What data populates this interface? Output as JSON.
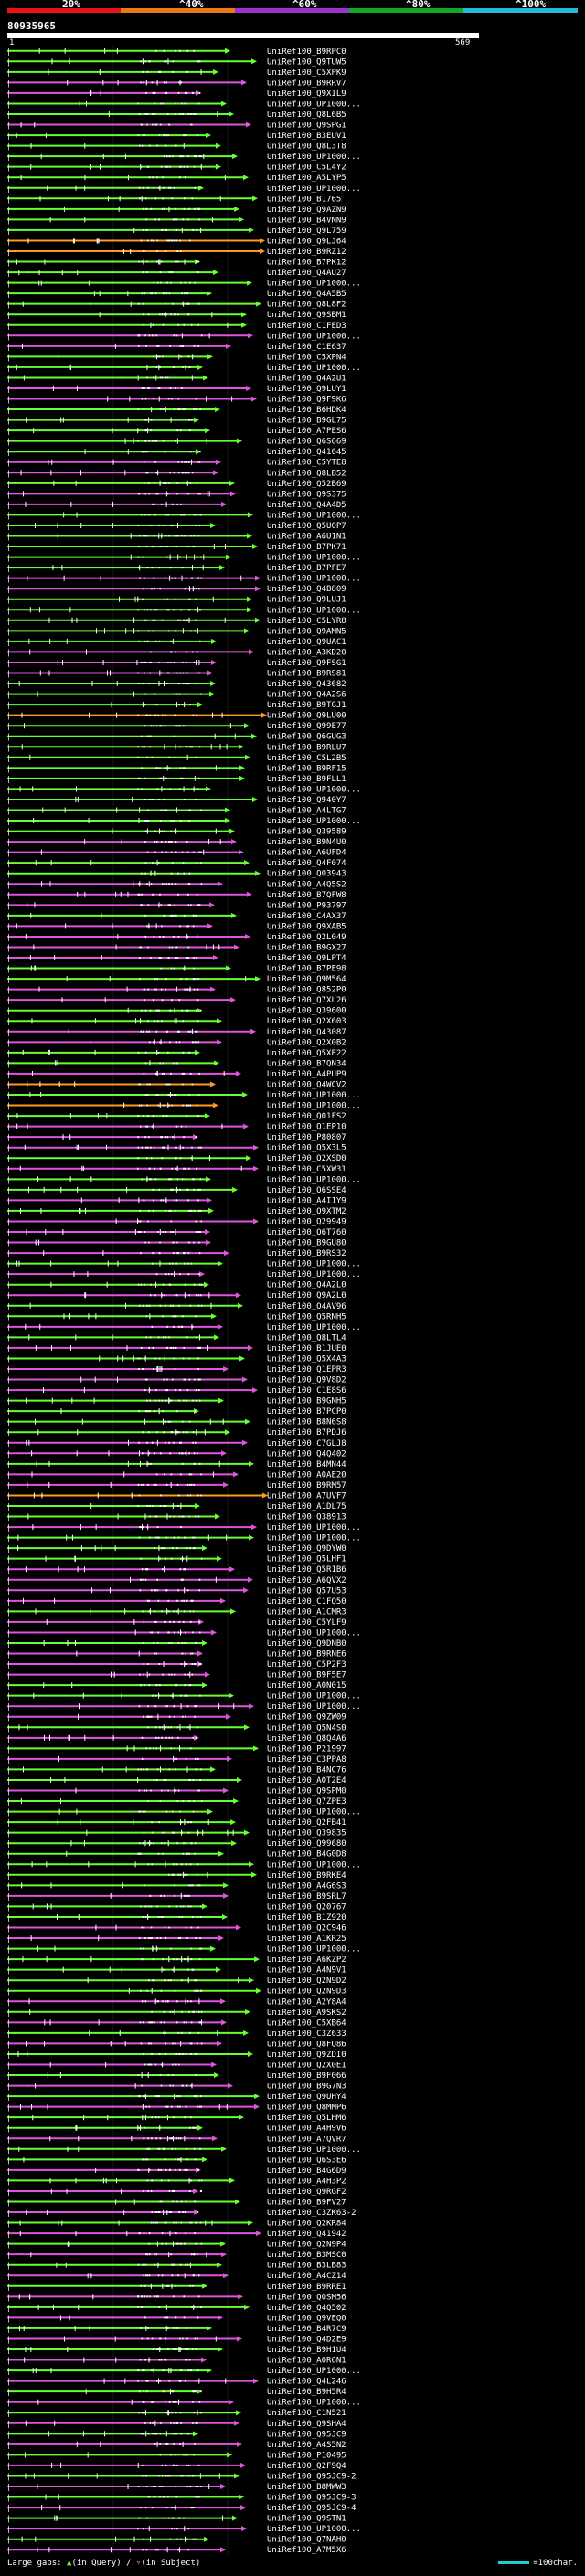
{
  "scale": {
    "ticks": [
      "20%",
      "^40%",
      "^60%",
      "^80%",
      "^100%"
    ],
    "segment_colors": [
      "#ee1111",
      "#ee7711",
      "#9933cc",
      "#11aa22",
      "#22bbdd"
    ]
  },
  "query": {
    "id": "80935965",
    "start": "1",
    "end": "569"
  },
  "footer": {
    "gaps_label": "Large gaps:",
    "in_query": "(in Query)",
    "separator": "/",
    "in_subject": "(in Subject)",
    "scale_label": "=100char."
  },
  "chart_data": {
    "type": "alignment-overview",
    "title": "80935965",
    "x_range": [
      1,
      569
    ],
    "row_colors": {
      "green": "#66ff33",
      "pink": "#dd55dd",
      "orange": "#ff9922"
    },
    "hits": [
      {
        "label": "UniRef100_B9RPC0",
        "color": "green"
      },
      {
        "label": "UniRef100_Q9TUW5",
        "color": "green"
      },
      {
        "label": "UniRef100_C5XPK9",
        "color": "green"
      },
      {
        "label": "UniRef100_B9RRV7",
        "color": "pink"
      },
      {
        "label": "UniRef100_Q9XIL9",
        "color": "pink"
      },
      {
        "label": "UniRef100_UP1000...",
        "color": "green"
      },
      {
        "label": "UniRef100_Q8L6B5",
        "color": "green"
      },
      {
        "label": "UniRef100_Q9SPG1",
        "color": "pink"
      },
      {
        "label": "UniRef100_B3EUV1",
        "color": "green"
      },
      {
        "label": "UniRef100_Q8L3T8",
        "color": "green"
      },
      {
        "label": "UniRef100_UP1000...",
        "color": "green"
      },
      {
        "label": "UniRef100_C5L4Y2",
        "color": "green"
      },
      {
        "label": "UniRef100_A5LYP5",
        "color": "green"
      },
      {
        "label": "UniRef100_UP1000...",
        "color": "green"
      },
      {
        "label": "UniRef100_B1765",
        "color": "green"
      },
      {
        "label": "UniRef100_Q9AZN9",
        "color": "green"
      },
      {
        "label": "UniRef100_B4VNN9",
        "color": "green"
      },
      {
        "label": "UniRef100_Q9L759",
        "color": "green"
      },
      {
        "label": "UniRef100_Q9LJ64",
        "color": "orange"
      },
      {
        "label": "UniRef100_B9RZ12",
        "color": "orange"
      },
      {
        "label": "UniRef100_B7PK12",
        "color": "green"
      },
      {
        "label": "UniRef100_Q4AU27",
        "color": "green"
      },
      {
        "label": "UniRef100_UP1000...",
        "color": "green"
      },
      {
        "label": "UniRef100_Q4A5B5",
        "color": "green"
      },
      {
        "label": "UniRef100_Q8L8F2",
        "color": "green"
      },
      {
        "label": "UniRef100_Q9SBM1",
        "color": "green"
      },
      {
        "label": "UniRef100_C1FED3",
        "color": "green"
      },
      {
        "label": "UniRef100_UP1000...",
        "color": "pink"
      },
      {
        "label": "UniRef100_C1E637",
        "color": "pink"
      },
      {
        "label": "UniRef100_C5XPN4",
        "color": "green"
      },
      {
        "label": "UniRef100_UP1000...",
        "color": "green"
      },
      {
        "label": "UniRef100_Q4A2U1",
        "color": "green"
      },
      {
        "label": "UniRef100_Q9LUY1",
        "color": "pink"
      },
      {
        "label": "UniRef100_Q9F9K6",
        "color": "pink"
      },
      {
        "label": "UniRef100_B6HDK4",
        "color": "green"
      },
      {
        "label": "UniRef100_B9GL75",
        "color": "green"
      },
      {
        "label": "UniRef100_A7PES6",
        "color": "green"
      },
      {
        "label": "UniRef100_Q6S669",
        "color": "green"
      },
      {
        "label": "UniRef100_Q41645",
        "color": "green"
      },
      {
        "label": "UniRef100_C5YTE8",
        "color": "pink"
      },
      {
        "label": "UniRef100_Q8LB52",
        "color": "pink"
      },
      {
        "label": "UniRef100_Q52B69",
        "color": "green"
      },
      {
        "label": "UniRef100_Q9S375",
        "color": "pink"
      },
      {
        "label": "UniRef100_Q4A4D5",
        "color": "pink"
      },
      {
        "label": "UniRef100_UP1000...",
        "color": "green"
      },
      {
        "label": "UniRef100_Q5U0P7",
        "color": "green"
      },
      {
        "label": "UniRef100_A6U1N1",
        "color": "green"
      },
      {
        "label": "UniRef100_B7PK71",
        "color": "green"
      },
      {
        "label": "UniRef100_UP1000...",
        "color": "green"
      },
      {
        "label": "UniRef100_B7PFE7",
        "color": "green"
      },
      {
        "label": "UniRef100_UP1000...",
        "color": "pink"
      },
      {
        "label": "UniRef100_Q4B809",
        "color": "pink"
      },
      {
        "label": "UniRef100_Q9LUJ1",
        "color": "green"
      },
      {
        "label": "UniRef100_UP1000...",
        "color": "green"
      },
      {
        "label": "UniRef100_C5LYR8",
        "color": "green"
      },
      {
        "label": "UniRef100_Q9AMN5",
        "color": "green"
      },
      {
        "label": "UniRef100_Q9UAC1",
        "color": "green"
      },
      {
        "label": "UniRef100_A3KD20",
        "color": "pink"
      },
      {
        "label": "UniRef100_Q9FSG1",
        "color": "pink"
      },
      {
        "label": "UniRef100_B9RS81",
        "color": "pink"
      },
      {
        "label": "UniRef100_Q43682",
        "color": "green"
      },
      {
        "label": "UniRef100_Q4A2S6",
        "color": "green"
      },
      {
        "label": "UniRef100_B9TGJ1",
        "color": "green"
      },
      {
        "label": "UniRef100_Q9LU00",
        "color": "orange"
      },
      {
        "label": "UniRef100_Q99E77",
        "color": "green"
      },
      {
        "label": "UniRef100_Q6GUG3",
        "color": "green"
      },
      {
        "label": "UniRef100_B9RLU7",
        "color": "green"
      },
      {
        "label": "UniRef100_C5L2B5",
        "color": "green"
      },
      {
        "label": "UniRef100_B9RF15",
        "color": "green"
      },
      {
        "label": "UniRef100_B9FLL1",
        "color": "green"
      },
      {
        "label": "UniRef100_UP1000...",
        "color": "green"
      },
      {
        "label": "UniRef100_Q940Y7",
        "color": "green"
      },
      {
        "label": "UniRef100_A4LTG7",
        "color": "green"
      },
      {
        "label": "UniRef100_UP1000...",
        "color": "green"
      },
      {
        "label": "UniRef100_Q39589",
        "color": "green"
      },
      {
        "label": "UniRef100_B9N4U0",
        "color": "pink"
      },
      {
        "label": "UniRef100_A6UFD4",
        "color": "pink"
      },
      {
        "label": "UniRef100_Q4F074",
        "color": "green"
      },
      {
        "label": "UniRef100_Q03943",
        "color": "green"
      },
      {
        "label": "UniRef100_A4Q5S2",
        "color": "pink"
      },
      {
        "label": "UniRef100_B7QFW8",
        "color": "pink"
      },
      {
        "label": "UniRef100_P93797",
        "color": "pink"
      },
      {
        "label": "UniRef100_C4AX37",
        "color": "green"
      },
      {
        "label": "UniRef100_Q9XAB5",
        "color": "pink"
      },
      {
        "label": "UniRef100_Q2L049",
        "color": "pink"
      },
      {
        "label": "UniRef100_B9GX27",
        "color": "pink"
      },
      {
        "label": "UniRef100_Q9LPT4",
        "color": "pink"
      },
      {
        "label": "UniRef100_B7PE98",
        "color": "green"
      },
      {
        "label": "UniRef100_Q9M564",
        "color": "green"
      },
      {
        "label": "UniRef100_Q852P0",
        "color": "pink"
      },
      {
        "label": "UniRef100_Q7XL26",
        "color": "pink"
      },
      {
        "label": "UniRef100_Q39600",
        "color": "green"
      },
      {
        "label": "UniRef100_Q2X603",
        "color": "green"
      },
      {
        "label": "UniRef100_Q43087",
        "color": "pink"
      },
      {
        "label": "UniRef100_Q2X0B2",
        "color": "pink"
      },
      {
        "label": "UniRef100_Q5XE22",
        "color": "green"
      },
      {
        "label": "UniRef100_B7QN34",
        "color": "green"
      },
      {
        "label": "UniRef100_A4PUP9",
        "color": "pink"
      },
      {
        "label": "UniRef100_Q4WCV2",
        "color": "orange"
      },
      {
        "label": "UniRef100_UP1000...",
        "color": "green"
      },
      {
        "label": "UniRef100_UP1000...",
        "color": "orange"
      },
      {
        "label": "UniRef100_Q01FS2",
        "color": "green"
      },
      {
        "label": "UniRef100_Q1EP10",
        "color": "pink"
      },
      {
        "label": "UniRef100_P80807",
        "color": "pink"
      },
      {
        "label": "UniRef100_Q5X3L5",
        "color": "pink"
      },
      {
        "label": "UniRef100_Q2XSD0",
        "color": "green"
      },
      {
        "label": "UniRef100_C5XW31",
        "color": "pink"
      },
      {
        "label": "UniRef100_UP1000...",
        "color": "green"
      },
      {
        "label": "UniRef100_Q6SSE4",
        "color": "green"
      },
      {
        "label": "UniRef100_A4I1Y9",
        "color": "pink"
      },
      {
        "label": "UniRef100_Q9XTM2",
        "color": "green"
      },
      {
        "label": "UniRef100_Q29949",
        "color": "pink"
      },
      {
        "label": "UniRef100_Q6T760",
        "color": "pink"
      },
      {
        "label": "UniRef100_B9GU80",
        "color": "pink"
      },
      {
        "label": "UniRef100_B9RS32",
        "color": "pink"
      },
      {
        "label": "UniRef100_UP1000...",
        "color": "green"
      },
      {
        "label": "UniRef100_UP1000...",
        "color": "pink"
      },
      {
        "label": "UniRef100_Q4A2L0",
        "color": "green"
      },
      {
        "label": "UniRef100_Q9A2L0",
        "color": "pink"
      },
      {
        "label": "UniRef100_Q4AV96",
        "color": "green"
      },
      {
        "label": "UniRef100_Q5RNH5",
        "color": "green"
      },
      {
        "label": "UniRef100_UP1000...",
        "color": "pink"
      },
      {
        "label": "UniRef100_Q8LTL4",
        "color": "green"
      },
      {
        "label": "UniRef100_B1JUE0",
        "color": "pink"
      },
      {
        "label": "UniRef100_Q5X4A3",
        "color": "green"
      },
      {
        "label": "UniRef100_Q1EPR3",
        "color": "pink"
      },
      {
        "label": "UniRef100_Q9V8D2",
        "color": "pink"
      },
      {
        "label": "UniRef100_C1E8S6",
        "color": "pink"
      },
      {
        "label": "UniRef100_B9GNH5",
        "color": "green"
      },
      {
        "label": "UniRef100_B7PCP0",
        "color": "green"
      },
      {
        "label": "UniRef100_B8N6S8",
        "color": "green"
      },
      {
        "label": "UniRef100_B7PDJ6",
        "color": "green"
      },
      {
        "label": "UniRef100_C7GLJ8",
        "color": "pink"
      },
      {
        "label": "UniRef100_Q4Q402",
        "color": "pink"
      },
      {
        "label": "UniRef100_B4MN44",
        "color": "green"
      },
      {
        "label": "UniRef100_A0AE20",
        "color": "pink"
      },
      {
        "label": "UniRef100_B9RM57",
        "color": "pink"
      },
      {
        "label": "UniRef100_A7UVF7",
        "color": "orange"
      },
      {
        "label": "UniRef100_A1DL75",
        "color": "green"
      },
      {
        "label": "UniRef100_Q38913",
        "color": "green"
      },
      {
        "label": "UniRef100_UP1000...",
        "color": "pink"
      },
      {
        "label": "UniRef100_UP1000...",
        "color": "green"
      },
      {
        "label": "UniRef100_Q9DYW0",
        "color": "green"
      },
      {
        "label": "UniRef100_Q5LHF1",
        "color": "green"
      },
      {
        "label": "UniRef100_Q5R1B6",
        "color": "pink"
      },
      {
        "label": "UniRef100_A6QVX2",
        "color": "pink"
      },
      {
        "label": "UniRef100_Q57U53",
        "color": "pink"
      },
      {
        "label": "UniRef100_C1FQ50",
        "color": "pink"
      },
      {
        "label": "UniRef100_A1CMR3",
        "color": "green"
      },
      {
        "label": "UniRef100_C5YLF9",
        "color": "pink"
      },
      {
        "label": "UniRef100_UP1000...",
        "color": "pink"
      },
      {
        "label": "UniRef100_Q9DNB0",
        "color": "green"
      },
      {
        "label": "UniRef100_B9RNE6",
        "color": "pink"
      },
      {
        "label": "UniRef100_C5P2F3",
        "color": "pink"
      },
      {
        "label": "UniRef100_B9F5E7",
        "color": "pink"
      },
      {
        "label": "UniRef100_A0N015",
        "color": "green"
      },
      {
        "label": "UniRef100_UP1000...",
        "color": "green"
      },
      {
        "label": "UniRef100_UP1000...",
        "color": "pink"
      },
      {
        "label": "UniRef100_Q9ZW09",
        "color": "pink"
      },
      {
        "label": "UniRef100_Q5N4S0",
        "color": "green"
      },
      {
        "label": "UniRef100_Q8Q4A6",
        "color": "pink"
      },
      {
        "label": "UniRef100_P21997",
        "color": "green"
      },
      {
        "label": "UniRef100_C3PPA8",
        "color": "pink"
      },
      {
        "label": "UniRef100_B4NC76",
        "color": "green"
      },
      {
        "label": "UniRef100_A0T2E4",
        "color": "green"
      },
      {
        "label": "UniRef100_Q9SPM0",
        "color": "pink"
      },
      {
        "label": "UniRef100_Q7ZPE3",
        "color": "green"
      },
      {
        "label": "UniRef100_UP1000...",
        "color": "green"
      },
      {
        "label": "UniRef100_Q2FB41",
        "color": "green"
      },
      {
        "label": "UniRef100_Q39835",
        "color": "green"
      },
      {
        "label": "UniRef100_Q99680",
        "color": "green"
      },
      {
        "label": "UniRef100_B4G0D8",
        "color": "green"
      },
      {
        "label": "UniRef100_UP1000...",
        "color": "green"
      },
      {
        "label": "UniRef100_B9RKE4",
        "color": "green"
      },
      {
        "label": "UniRef100_A4G6S3",
        "color": "green"
      },
      {
        "label": "UniRef100_B9SRL7",
        "color": "pink"
      },
      {
        "label": "UniRef100_Q20767",
        "color": "green"
      },
      {
        "label": "UniRef100_B1Z920",
        "color": "green"
      },
      {
        "label": "UniRef100_Q2C946",
        "color": "pink"
      },
      {
        "label": "UniRef100_A1KR25",
        "color": "pink"
      },
      {
        "label": "UniRef100_UP1000...",
        "color": "green"
      },
      {
        "label": "UniRef100_A6KZP2",
        "color": "green"
      },
      {
        "label": "UniRef100_A4N9V1",
        "color": "green"
      },
      {
        "label": "UniRef100_Q2N9D2",
        "color": "green"
      },
      {
        "label": "UniRef100_Q2N9D3",
        "color": "green"
      },
      {
        "label": "UniRef100_A2Y8A4",
        "color": "pink"
      },
      {
        "label": "UniRef100_A9SKS2",
        "color": "green"
      },
      {
        "label": "UniRef100_C5XB64",
        "color": "pink"
      },
      {
        "label": "UniRef100_C3Z633",
        "color": "green"
      },
      {
        "label": "UniRef100_Q8FQ86",
        "color": "pink"
      },
      {
        "label": "UniRef100_Q9ZDI0",
        "color": "green"
      },
      {
        "label": "UniRef100_Q2X0E1",
        "color": "pink"
      },
      {
        "label": "UniRef100_B9F066",
        "color": "green"
      },
      {
        "label": "UniRef100_B9G7N3",
        "color": "pink"
      },
      {
        "label": "UniRef100_Q9UHY4",
        "color": "green"
      },
      {
        "label": "UniRef100_Q8MMP6",
        "color": "pink"
      },
      {
        "label": "UniRef100_Q5LHM6",
        "color": "green"
      },
      {
        "label": "UniRef100_A4H9V6",
        "color": "green"
      },
      {
        "label": "UniRef100_A7QVR7",
        "color": "pink"
      },
      {
        "label": "UniRef100_UP1000...",
        "color": "green"
      },
      {
        "label": "UniRef100_Q6S3E6",
        "color": "green"
      },
      {
        "label": "UniRef100_B4G6D9",
        "color": "pink"
      },
      {
        "label": "UniRef100_A4H3P2",
        "color": "green"
      },
      {
        "label": "UniRef100_Q9RGF2",
        "color": "pink"
      },
      {
        "label": "UniRef100_B9FV27",
        "color": "green"
      },
      {
        "label": "UniRef100_C3ZK63-2",
        "color": "pink"
      },
      {
        "label": "UniRef100_Q2KR84",
        "color": "green"
      },
      {
        "label": "UniRef100_Q41942",
        "color": "pink"
      },
      {
        "label": "UniRef100_Q2N9P4",
        "color": "green"
      },
      {
        "label": "UniRef100_B3MSC0",
        "color": "pink"
      },
      {
        "label": "UniRef100_B3LB83",
        "color": "green"
      },
      {
        "label": "UniRef100_A4CZ14",
        "color": "pink"
      },
      {
        "label": "UniRef100_B9RRE1",
        "color": "green"
      },
      {
        "label": "UniRef100_Q0SM56",
        "color": "pink"
      },
      {
        "label": "UniRef100_Q4Q502",
        "color": "green"
      },
      {
        "label": "UniRef100_Q9VEQ0",
        "color": "pink"
      },
      {
        "label": "UniRef100_B4R7C9",
        "color": "green"
      },
      {
        "label": "UniRef100_Q4D2E9",
        "color": "pink"
      },
      {
        "label": "UniRef100_B9H1U4",
        "color": "green"
      },
      {
        "label": "UniRef100_A0R6N1",
        "color": "pink"
      },
      {
        "label": "UniRef100_UP1000...",
        "color": "green"
      },
      {
        "label": "UniRef100_Q4L246",
        "color": "pink"
      },
      {
        "label": "UniRef100_B9H5R4",
        "color": "green"
      },
      {
        "label": "UniRef100_UP1000...",
        "color": "pink"
      },
      {
        "label": "UniRef100_C1N521",
        "color": "green"
      },
      {
        "label": "UniRef100_Q9SHA4",
        "color": "pink"
      },
      {
        "label": "UniRef100_Q95JC9",
        "color": "green"
      },
      {
        "label": "UniRef100_A4S5N2",
        "color": "pink"
      },
      {
        "label": "UniRef100_P10495",
        "color": "green"
      },
      {
        "label": "UniRef100_Q2F9Q4",
        "color": "pink"
      },
      {
        "label": "UniRef100_Q95JC9-2",
        "color": "green"
      },
      {
        "label": "UniRef100_B8MWW3",
        "color": "pink"
      },
      {
        "label": "UniRef100_Q95JC9-3",
        "color": "green"
      },
      {
        "label": "UniRef100_Q95JC9-4",
        "color": "pink"
      },
      {
        "label": "UniRef100_Q9STN1",
        "color": "green"
      },
      {
        "label": "UniRef100_UP1000...",
        "color": "pink"
      },
      {
        "label": "UniRef100_Q7NAH0",
        "color": "green"
      },
      {
        "label": "UniRef100_A7M5X6",
        "color": "pink"
      }
    ]
  }
}
